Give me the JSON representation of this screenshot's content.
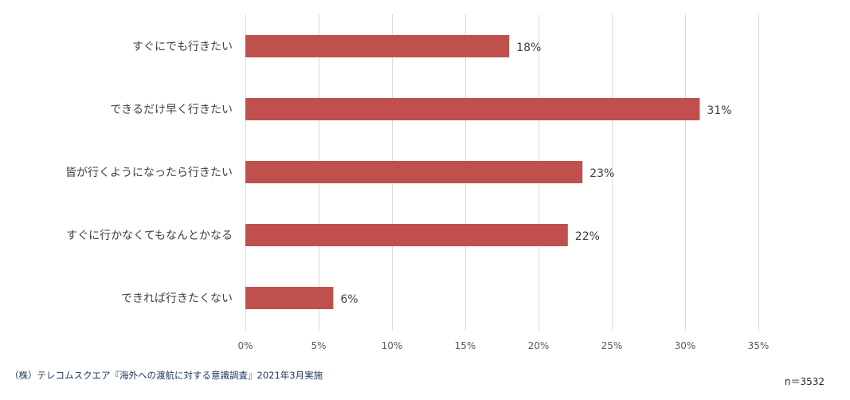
{
  "chart_data": {
    "type": "bar",
    "orientation": "horizontal",
    "categories": [
      "すぐにでも行きたい",
      "できるだけ早く行きたい",
      "皆が行くようになったら行きたい",
      "すぐに行かなくてもなんとかなる",
      "できれば行きたくない"
    ],
    "values": [
      18,
      31,
      23,
      22,
      6
    ],
    "data_labels": [
      "18%",
      "31%",
      "23%",
      "22%",
      "6%"
    ],
    "x_ticks": [
      0,
      5,
      10,
      15,
      20,
      25,
      30,
      35
    ],
    "x_tick_labels": [
      "0%",
      "5%",
      "10%",
      "15%",
      "20%",
      "25%",
      "30%",
      "35%"
    ],
    "xlim": [
      0,
      35
    ],
    "grid": "vertical",
    "legend": "none",
    "bar_color": "#c0504d",
    "grid_color": "#d9d9d9"
  },
  "footer": {
    "source": "（株）テレコムスクエア『海外への渡航に対する意識調査』2021年3月実施",
    "sample_size": "n＝3532"
  }
}
